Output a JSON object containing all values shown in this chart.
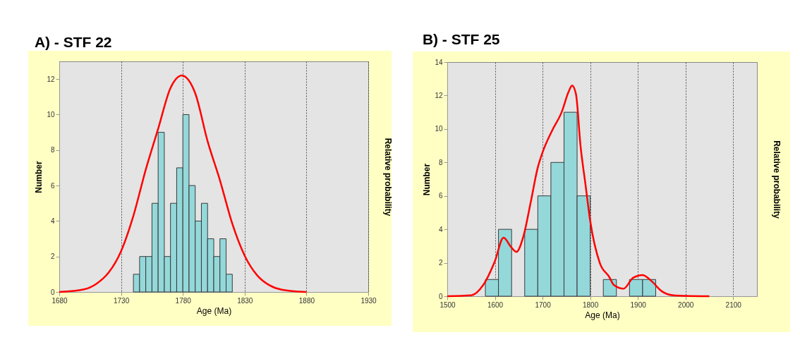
{
  "chart_data": [
    {
      "type": "histogram",
      "title": "A) - STF 22",
      "xlabel": "Age (Ma)",
      "ylabel": "Number",
      "y2label": "Relative probability",
      "bins": [
        1740,
        1745,
        1750,
        1755,
        1760,
        1765,
        1770,
        1775,
        1780,
        1785,
        1790,
        1795,
        1800,
        1805,
        1810,
        1815,
        1820
      ],
      "values": [
        1,
        2,
        2,
        5,
        9,
        2,
        5,
        7,
        10,
        6,
        4,
        5,
        3,
        2,
        3,
        1
      ],
      "color": "#94d8da",
      "series": [
        {
          "type": "line",
          "color": "#ff0000",
          "x": [
            1680,
            1700,
            1710,
            1720,
            1730,
            1740,
            1750,
            1760,
            1770,
            1779,
            1790,
            1800,
            1810,
            1820,
            1830,
            1840,
            1850,
            1860,
            1880
          ],
          "values": [
            0,
            0.15,
            0.46,
            1.1,
            2.3,
            4.3,
            6.9,
            9.2,
            11.5,
            12.2,
            11.2,
            8.5,
            6.3,
            3.85,
            2.05,
            0.95,
            0.38,
            0.13,
            0
          ]
        }
      ],
      "xlim": [
        1680,
        1930
      ],
      "xticks": [
        1680,
        1730,
        1780,
        1830,
        1880,
        1930
      ],
      "ylim": [
        0,
        13
      ],
      "yticks": [
        0,
        2,
        4,
        6,
        8,
        10,
        12
      ],
      "grid": "x"
    },
    {
      "type": "histogram",
      "title": "B) - STF 25",
      "xlabel": "Age (Ma)",
      "ylabel": "Number",
      "y2label": "Relative probability",
      "bins": [
        1580,
        1607.5,
        1635,
        1662.5,
        1690,
        1717.5,
        1745,
        1772.5,
        1800,
        1827.5,
        1855,
        1882.5,
        1910,
        1937.5
      ],
      "values": [
        1,
        4,
        0,
        4,
        6,
        8,
        11,
        6,
        0,
        1,
        0,
        1,
        1
      ],
      "color": "#94d8da",
      "series": [
        {
          "type": "line",
          "color": "#ff0000",
          "x": [
            1500,
            1550,
            1575,
            1600,
            1618,
            1635,
            1645,
            1660,
            1675,
            1690,
            1700,
            1720,
            1740,
            1755,
            1762,
            1770,
            1780,
            1790,
            1800,
            1820,
            1840,
            1850,
            1870,
            1890,
            1910,
            1930,
            1950,
            1975,
            2000,
            2050
          ],
          "values": [
            0,
            0.05,
            0.65,
            2.1,
            3.5,
            2.9,
            2.65,
            3.6,
            5.6,
            7.7,
            8.6,
            9.9,
            11,
            12.25,
            12.6,
            12.1,
            8.9,
            6.7,
            4.5,
            2,
            1.15,
            0.66,
            0.45,
            1.1,
            1.27,
            0.87,
            0.3,
            0.05,
            0.02,
            0
          ]
        }
      ],
      "xlim": [
        1500,
        2150
      ],
      "xticks": [
        1500,
        1600,
        1700,
        1800,
        1900,
        2000,
        2100
      ],
      "ylim": [
        0,
        14
      ],
      "yticks": [
        0,
        2,
        4,
        6,
        8,
        10,
        12,
        14
      ],
      "grid": "x"
    }
  ]
}
